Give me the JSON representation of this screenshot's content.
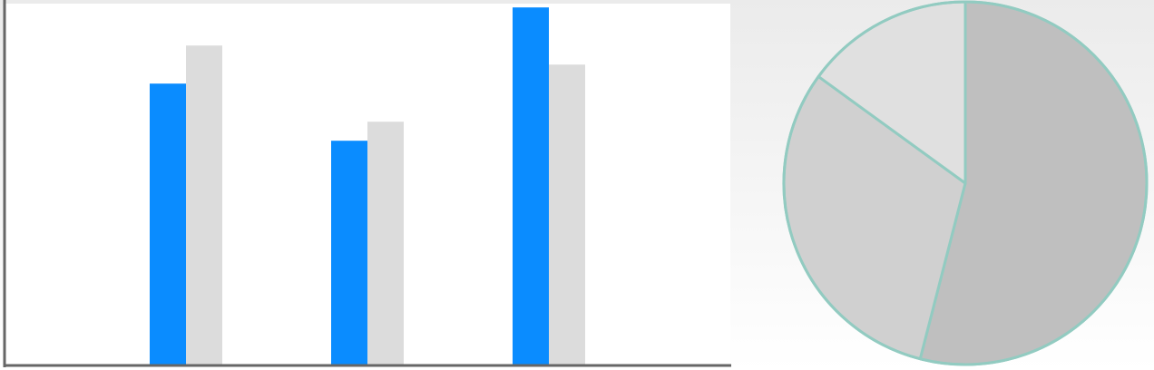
{
  "colors": {
    "background_top": "#ebebeb",
    "plot_background": "#ffffff",
    "axis": "#666666",
    "series_primary": "#0a8cff",
    "series_secondary": "#dcdcdc",
    "pie_slice_large": "#bfbfbf",
    "pie_slice_medium": "#d0d0d0",
    "pie_slice_small": "#e0e0e0",
    "pie_outline": "#92cbc1"
  },
  "chart_data": [
    {
      "type": "bar",
      "title": "",
      "xlabel": "",
      "ylabel": "",
      "grid": false,
      "legend": "none",
      "categories": [
        "",
        "",
        ""
      ],
      "ylim": [
        0,
        95
      ],
      "series": [
        {
          "values": [
            74,
            59,
            94
          ]
        },
        {
          "values": [
            84,
            64,
            79
          ]
        }
      ]
    },
    {
      "type": "pie",
      "title": "",
      "legend": "none",
      "labels": [
        "",
        "",
        ""
      ],
      "values": [
        54,
        31,
        15
      ]
    }
  ]
}
